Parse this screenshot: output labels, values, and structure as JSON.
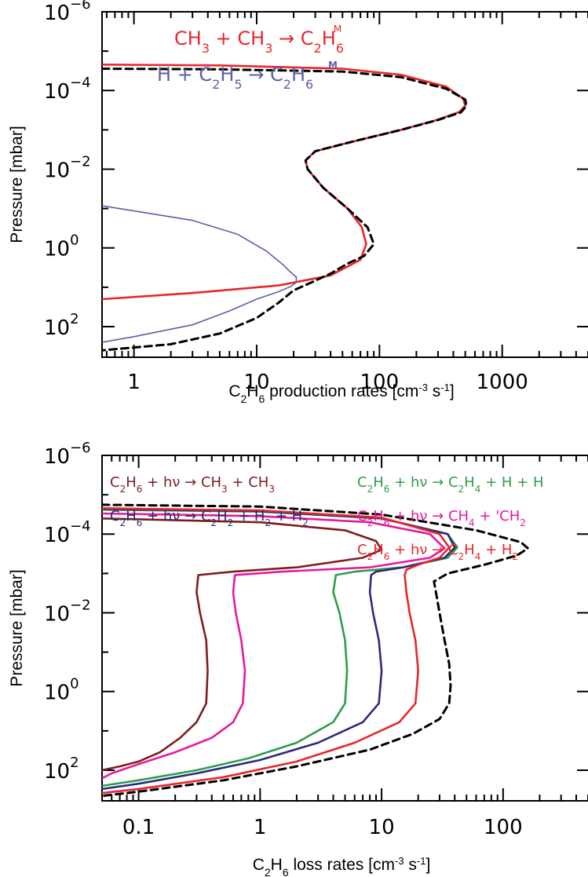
{
  "chart_data": [
    {
      "type": "line",
      "xlabel": "C2H6 production rates [cm-3 s-1]",
      "ylabel": "Pressure [mbar]",
      "x_scale": "log",
      "y_scale": "log",
      "y_reversed": true,
      "xlim": [
        0.55,
        5000
      ],
      "ylim": [
        1e-06,
        600
      ],
      "x_ticks": [
        {
          "value": 1,
          "label": "1"
        },
        {
          "value": 10,
          "label": "10"
        },
        {
          "value": 100,
          "label": "100"
        },
        {
          "value": 1000,
          "label": "1000"
        }
      ],
      "y_ticks": [
        {
          "value": 1e-06,
          "base": "10",
          "exp": "−6"
        },
        {
          "value": 0.0001,
          "base": "10",
          "exp": "−4"
        },
        {
          "value": 0.01,
          "base": "10",
          "exp": "−2"
        },
        {
          "value": 1,
          "base": "10",
          "exp": "0"
        },
        {
          "value": 100,
          "base": "10",
          "exp": "2"
        }
      ],
      "legend": {
        "placement": "top-left",
        "entries": [
          {
            "reactant1": "CH3",
            "reactant2": "CH3",
            "arrow_label": "M",
            "product": "C2H6",
            "color": "#e8262b"
          },
          {
            "reactant1": "H",
            "reactant2": "C2H5",
            "arrow_label": "M",
            "product": "C2H6",
            "color": "#5a5fa8"
          }
        ]
      },
      "series": [
        {
          "color": "#e8262b",
          "dash": false,
          "points": [
            [
              0.55,
              2.2e-05
            ],
            [
              5,
              2.3e-05
            ],
            [
              50,
              2.8e-05
            ],
            [
              150,
              4e-05
            ],
            [
              350,
              8e-05
            ],
            [
              480,
              0.00016
            ],
            [
              500,
              0.00024
            ],
            [
              450,
              0.00035
            ],
            [
              300,
              0.00055
            ],
            [
              150,
              0.001
            ],
            [
              60,
              0.002
            ],
            [
              30,
              0.0035
            ],
            [
              25,
              0.006
            ],
            [
              26,
              0.01
            ],
            [
              35,
              0.03
            ],
            [
              55,
              0.1
            ],
            [
              72,
              0.3
            ],
            [
              78,
              0.8
            ],
            [
              70,
              2
            ],
            [
              40,
              5
            ],
            [
              15,
              9
            ],
            [
              3,
              14
            ],
            [
              0.55,
              20
            ]
          ]
        },
        {
          "color": "#5a5fa8",
          "dash": false,
          "points": [
            [
              0.55,
              0.085
            ],
            [
              3,
              0.2
            ],
            [
              7,
              0.45
            ],
            [
              12,
              1.2
            ],
            [
              16,
              2.5
            ],
            [
              19,
              4.2
            ],
            [
              21,
              5.5
            ],
            [
              21,
              7.5
            ],
            [
              19,
              9.5
            ],
            [
              15,
              13
            ],
            [
              10,
              20
            ],
            [
              6,
              40
            ],
            [
              3,
              90
            ],
            [
              1,
              180
            ],
            [
              0.55,
              250
            ]
          ]
        },
        {
          "color": "#000000",
          "dash": true,
          "points": [
            [
              0.55,
              2.8e-05
            ],
            [
              5,
              2.9e-05
            ],
            [
              50,
              3.3e-05
            ],
            [
              150,
              4.6e-05
            ],
            [
              350,
              9e-05
            ],
            [
              500,
              0.00017
            ],
            [
              510,
              0.00025
            ],
            [
              460,
              0.00036
            ],
            [
              300,
              0.00056
            ],
            [
              150,
              0.001
            ],
            [
              60,
              0.002
            ],
            [
              30,
              0.0035
            ],
            [
              25,
              0.006
            ],
            [
              26,
              0.01
            ],
            [
              35,
              0.03
            ],
            [
              55,
              0.1
            ],
            [
              80,
              0.3
            ],
            [
              90,
              0.8
            ],
            [
              75,
              1.6
            ],
            [
              55,
              2.5
            ],
            [
              40,
              4.5
            ],
            [
              28,
              7.5
            ],
            [
              20,
              12
            ],
            [
              15,
              25
            ],
            [
              10,
              60
            ],
            [
              5,
              150
            ],
            [
              2,
              280
            ],
            [
              0.55,
              400
            ]
          ]
        }
      ]
    },
    {
      "type": "line",
      "xlabel": "C2H6 loss rates [cm-3 s-1]",
      "ylabel": "Pressure [mbar]",
      "x_scale": "log",
      "y_scale": "log",
      "y_reversed": true,
      "xlim": [
        0.05,
        500
      ],
      "ylim": [
        1e-06,
        600
      ],
      "x_ticks": [
        {
          "value": 0.1,
          "label": "0.1"
        },
        {
          "value": 1,
          "label": "1"
        },
        {
          "value": 10,
          "label": "10"
        },
        {
          "value": 100,
          "label": "100"
        }
      ],
      "y_ticks": [
        {
          "value": 1e-06,
          "base": "10",
          "exp": "−6"
        },
        {
          "value": 0.0001,
          "base": "10",
          "exp": "−4"
        },
        {
          "value": 0.01,
          "base": "10",
          "exp": "−2"
        },
        {
          "value": 1,
          "base": "10",
          "exp": "0"
        },
        {
          "value": 100,
          "base": "10",
          "exp": "2"
        }
      ],
      "legend": {
        "placement": "top",
        "entries": [
          {
            "reactant": "C2H6",
            "photon": "hν",
            "products": "CH3 + CH3",
            "color": "#7f1d1d",
            "column": "left"
          },
          {
            "reactant": "C2H6",
            "photon": "hν",
            "products": "C2H2 + H2 + H2",
            "color": "#2b2a7e",
            "column": "left"
          },
          {
            "reactant": "C2H6",
            "photon": "hν",
            "products": "C2H4 + H + H",
            "color": "#2e9e4a",
            "column": "right"
          },
          {
            "reactant": "C2H6",
            "photon": "hν",
            "products": "CH4 + 'CH2",
            "color": "#e6199e",
            "column": "right"
          },
          {
            "reactant": "C2H6",
            "photon": "hν",
            "products": "C2H4 + H2",
            "color": "#e8262b",
            "column": "right"
          }
        ]
      },
      "series": [
        {
          "color": "#7f1d1d",
          "dash": false,
          "points": [
            [
              0.05,
              4e-05
            ],
            [
              1,
              5e-05
            ],
            [
              5,
              8e-05
            ],
            [
              9,
              0.00015
            ],
            [
              10,
              0.00025
            ],
            [
              7,
              0.0004
            ],
            [
              2,
              0.0007
            ],
            [
              0.6,
              0.0009
            ],
            [
              0.31,
              0.0011
            ],
            [
              0.3,
              0.003
            ],
            [
              0.32,
              0.01
            ],
            [
              0.36,
              0.05
            ],
            [
              0.37,
              0.3
            ],
            [
              0.36,
              2
            ],
            [
              0.3,
              6
            ],
            [
              0.22,
              15
            ],
            [
              0.15,
              35
            ],
            [
              0.1,
              60
            ],
            [
              0.07,
              80
            ],
            [
              0.05,
              100
            ]
          ]
        },
        {
          "color": "#e6199e",
          "dash": false,
          "points": [
            [
              0.05,
              3e-05
            ],
            [
              1,
              3.5e-05
            ],
            [
              8,
              5e-05
            ],
            [
              25,
              0.0001
            ],
            [
              33,
              0.00023
            ],
            [
              25,
              0.0004
            ],
            [
              8,
              0.0007
            ],
            [
              1.5,
              0.0009
            ],
            [
              0.62,
              0.0011
            ],
            [
              0.6,
              0.003
            ],
            [
              0.63,
              0.01
            ],
            [
              0.7,
              0.05
            ],
            [
              0.75,
              0.3
            ],
            [
              0.72,
              2
            ],
            [
              0.6,
              6
            ],
            [
              0.4,
              15
            ],
            [
              0.2,
              35
            ],
            [
              0.1,
              70
            ],
            [
              0.06,
              120
            ],
            [
              0.05,
              160
            ]
          ]
        },
        {
          "color": "#2e9e4a",
          "dash": false,
          "points": [
            [
              0.05,
              2.4e-05
            ],
            [
              1,
              2.7e-05
            ],
            [
              10,
              4e-05
            ],
            [
              35,
              0.0001
            ],
            [
              42,
              0.00022
            ],
            [
              35,
              0.0004
            ],
            [
              15,
              0.0007
            ],
            [
              6,
              0.0009
            ],
            [
              4.2,
              0.0011
            ],
            [
              4,
              0.003
            ],
            [
              4.5,
              0.01
            ],
            [
              5,
              0.05
            ],
            [
              5.2,
              0.3
            ],
            [
              5,
              2
            ],
            [
              4,
              6
            ],
            [
              2,
              20
            ],
            [
              0.8,
              50
            ],
            [
              0.3,
              100
            ],
            [
              0.1,
              180
            ],
            [
              0.05,
              250
            ]
          ]
        },
        {
          "color": "#2b2a7e",
          "dash": false,
          "points": [
            [
              0.05,
              2.3e-05
            ],
            [
              1,
              2.6e-05
            ],
            [
              10,
              4e-05
            ],
            [
              35,
              0.0001
            ],
            [
              40,
              0.00022
            ],
            [
              33,
              0.0004
            ],
            [
              15,
              0.0007
            ],
            [
              9,
              0.0009
            ],
            [
              8.2,
              0.0011
            ],
            [
              8,
              0.003
            ],
            [
              8.5,
              0.01
            ],
            [
              9.5,
              0.05
            ],
            [
              10,
              0.3
            ],
            [
              9.5,
              2
            ],
            [
              7,
              6
            ],
            [
              3,
              20
            ],
            [
              1,
              55
            ],
            [
              0.3,
              120
            ],
            [
              0.1,
              220
            ],
            [
              0.05,
              300
            ]
          ]
        },
        {
          "color": "#e8262b",
          "dash": false,
          "points": [
            [
              0.05,
              2.2e-05
            ],
            [
              1,
              2.5e-05
            ],
            [
              10,
              3.8e-05
            ],
            [
              30,
              0.0001
            ],
            [
              36,
              0.00022
            ],
            [
              30,
              0.0004
            ],
            [
              20,
              0.0006
            ],
            [
              16,
              0.0008
            ],
            [
              15.5,
              0.0011
            ],
            [
              16,
              0.003
            ],
            [
              17,
              0.01
            ],
            [
              19,
              0.05
            ],
            [
              20,
              0.3
            ],
            [
              19,
              2
            ],
            [
              14,
              6
            ],
            [
              6,
              20
            ],
            [
              2,
              60
            ],
            [
              0.5,
              150
            ],
            [
              0.1,
              300
            ],
            [
              0.05,
              380
            ]
          ]
        },
        {
          "color": "#000000",
          "dash": true,
          "points": [
            [
              0.05,
              1.8e-05
            ],
            [
              1,
              2e-05
            ],
            [
              10,
              3.2e-05
            ],
            [
              60,
              8e-05
            ],
            [
              140,
              0.00016
            ],
            [
              160,
              0.00023
            ],
            [
              130,
              0.00035
            ],
            [
              70,
              0.0006
            ],
            [
              35,
              0.001
            ],
            [
              27,
              0.0016
            ],
            [
              28,
              0.003
            ],
            [
              30,
              0.01
            ],
            [
              33,
              0.05
            ],
            [
              36,
              0.2
            ],
            [
              37,
              0.7
            ],
            [
              36,
              2
            ],
            [
              30,
              5
            ],
            [
              18,
              12
            ],
            [
              8,
              30
            ],
            [
              2,
              80
            ],
            [
              0.5,
              180
            ],
            [
              0.1,
              350
            ],
            [
              0.05,
              450
            ]
          ]
        }
      ]
    }
  ]
}
